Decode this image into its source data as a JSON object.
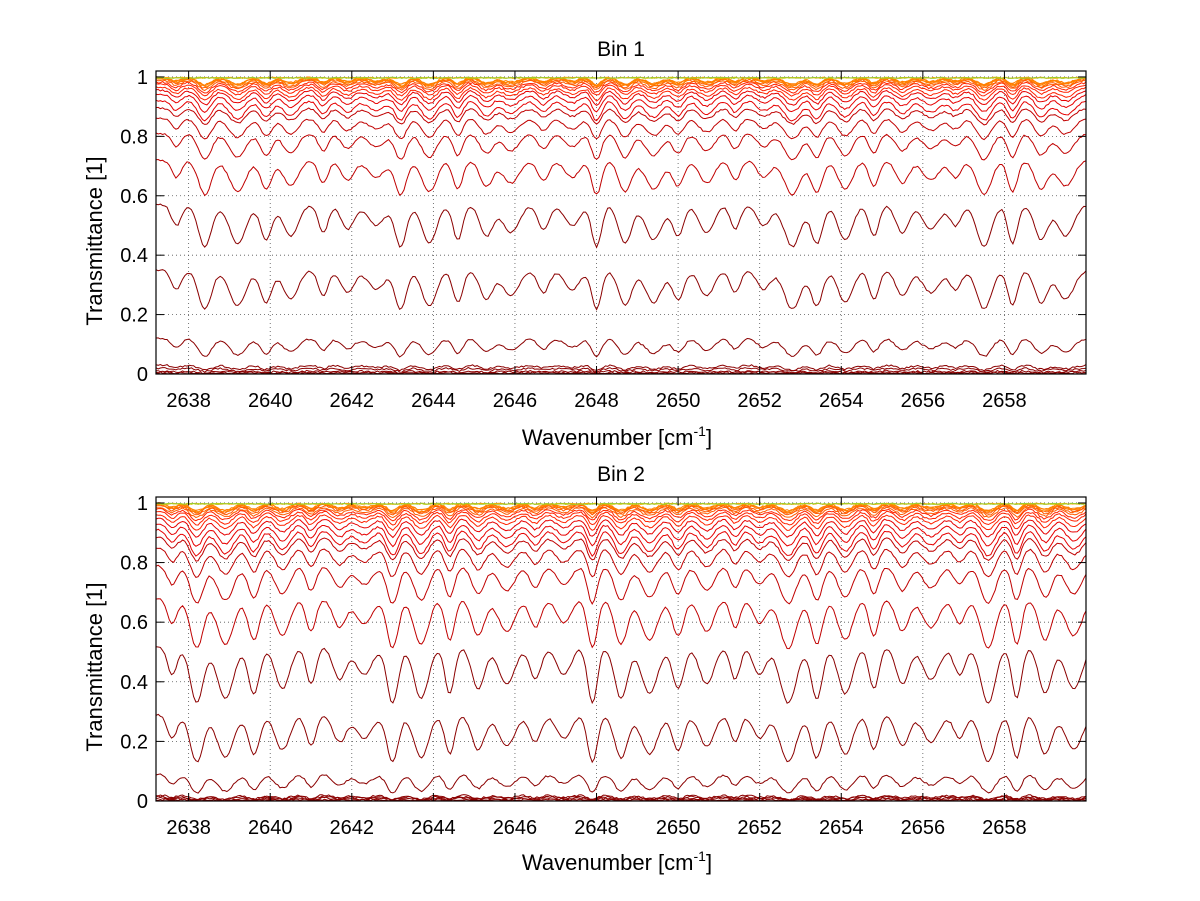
{
  "chart_data": [
    {
      "type": "line",
      "title": "Bin 1",
      "xlabel": "Wavenumber [cm",
      "xlabel_sup": "-1",
      "xlabel_tail": "]",
      "ylabel": "Transmittance [1]",
      "xlim": [
        2637.2,
        2660
      ],
      "ylim": [
        0,
        1.02
      ],
      "xticks": [
        2638,
        2640,
        2642,
        2644,
        2646,
        2648,
        2650,
        2652,
        2654,
        2656,
        2658
      ],
      "yticks": [
        0,
        0.2,
        0.4,
        0.6,
        0.8,
        1
      ],
      "xtick_labels": [
        "2638",
        "2640",
        "2642",
        "2644",
        "2646",
        "2648",
        "2650",
        "2652",
        "2654",
        "2656",
        "2658"
      ],
      "ytick_labels": [
        "0",
        "0.2",
        "0.4",
        "0.6",
        "0.8",
        "1"
      ],
      "grid": true,
      "grid_style": "dotted",
      "legend": "none",
      "series_count": 30,
      "series_colors": [
        "#8b0000",
        "#c00000",
        "#e60000",
        "#ff2200",
        "#ff5a00",
        "#ff7f00",
        "#9acd32"
      ],
      "series_baselines": [
        0.0,
        0.005,
        0.01,
        0.02,
        0.03,
        0.12,
        0.35,
        0.57,
        0.72,
        0.81,
        0.86,
        0.895,
        0.92,
        0.94,
        0.955,
        0.965,
        0.975,
        0.982,
        0.988,
        0.992,
        0.995,
        0.997,
        0.998,
        0.999
      ],
      "absorption_lines": [
        2637.7,
        2638.4,
        2639.2,
        2639.9,
        2640.5,
        2641.3,
        2641.9,
        2642.6,
        2643.2,
        2643.9,
        2644.6,
        2645.3,
        2645.9,
        2646.7,
        2647.4,
        2648.0,
        2648.7,
        2649.4,
        2650.0,
        2650.7,
        2651.4,
        2652.1,
        2652.8,
        2653.4,
        2654.1,
        2654.8,
        2655.5,
        2656.2,
        2656.8,
        2657.5,
        2658.2,
        2658.9,
        2659.5
      ],
      "line_strength": 0.12
    },
    {
      "type": "line",
      "title": "Bin 2",
      "xlabel": "Wavenumber [cm",
      "xlabel_sup": "-1",
      "xlabel_tail": "]",
      "ylabel": "Transmittance [1]",
      "xlim": [
        2637.2,
        2660
      ],
      "ylim": [
        0,
        1.02
      ],
      "xticks": [
        2638,
        2640,
        2642,
        2644,
        2646,
        2648,
        2650,
        2652,
        2654,
        2656,
        2658
      ],
      "yticks": [
        0,
        0.2,
        0.4,
        0.6,
        0.8,
        1
      ],
      "xtick_labels": [
        "2638",
        "2640",
        "2642",
        "2644",
        "2646",
        "2648",
        "2650",
        "2652",
        "2654",
        "2656",
        "2658"
      ],
      "ytick_labels": [
        "0",
        "0.2",
        "0.4",
        "0.6",
        "0.8",
        "1"
      ],
      "grid": true,
      "grid_style": "dotted",
      "legend": "none",
      "series_count": 30,
      "series_colors": [
        "#8b0000",
        "#c00000",
        "#e60000",
        "#ff2200",
        "#ff5a00",
        "#ff7f00",
        "#9acd32"
      ],
      "series_baselines": [
        0.0,
        0.005,
        0.01,
        0.015,
        0.02,
        0.09,
        0.29,
        0.52,
        0.68,
        0.79,
        0.85,
        0.885,
        0.91,
        0.93,
        0.948,
        0.962,
        0.972,
        0.98,
        0.986,
        0.991,
        0.994,
        0.996,
        0.998,
        0.999
      ],
      "absorption_lines": [
        2637.6,
        2638.2,
        2638.9,
        2639.6,
        2640.3,
        2641.0,
        2641.7,
        2642.3,
        2643.0,
        2643.7,
        2644.4,
        2645.1,
        2645.8,
        2646.5,
        2647.2,
        2647.9,
        2648.6,
        2649.3,
        2650.0,
        2650.7,
        2651.4,
        2652.0,
        2652.7,
        2653.4,
        2654.1,
        2654.8,
        2655.5,
        2656.2,
        2656.9,
        2657.6,
        2658.3,
        2659.0,
        2659.7
      ],
      "line_strength": 0.16
    }
  ]
}
